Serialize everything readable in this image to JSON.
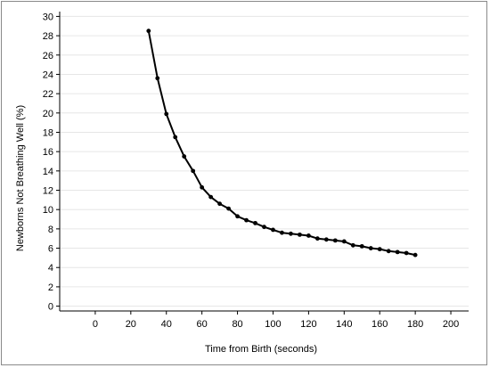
{
  "chart_data": {
    "type": "line",
    "title": "",
    "xlabel": "Time from Birth (seconds)",
    "ylabel": "Newborns Not Breathing Well (%)",
    "xlim": [
      -20,
      210
    ],
    "ylim": [
      -0.5,
      30.5
    ],
    "xticks": [
      0,
      20,
      40,
      60,
      80,
      100,
      120,
      140,
      160,
      180,
      200
    ],
    "yticks": [
      0,
      2,
      4,
      6,
      8,
      10,
      12,
      14,
      16,
      18,
      20,
      22,
      24,
      26,
      28,
      30
    ],
    "grid": "horizontal",
    "colors": {
      "line": "#000000",
      "grid": "#e6e6e6",
      "axis": "#000000"
    },
    "series": [
      {
        "x": [
          30,
          35,
          40,
          45,
          50,
          55,
          60,
          65,
          70,
          75,
          80,
          85,
          90,
          95,
          100,
          105,
          110,
          115,
          120,
          125,
          130,
          135,
          140,
          145,
          150,
          155,
          160,
          165,
          170,
          175,
          180
        ],
        "values": [
          28.5,
          23.6,
          19.9,
          17.5,
          15.5,
          14.0,
          12.3,
          11.3,
          10.6,
          10.1,
          9.3,
          8.9,
          8.6,
          8.2,
          7.9,
          7.6,
          7.5,
          7.4,
          7.3,
          7.0,
          6.9,
          6.8,
          6.7,
          6.3,
          6.2,
          6.0,
          5.9,
          5.7,
          5.6,
          5.5,
          5.3
        ]
      }
    ]
  }
}
